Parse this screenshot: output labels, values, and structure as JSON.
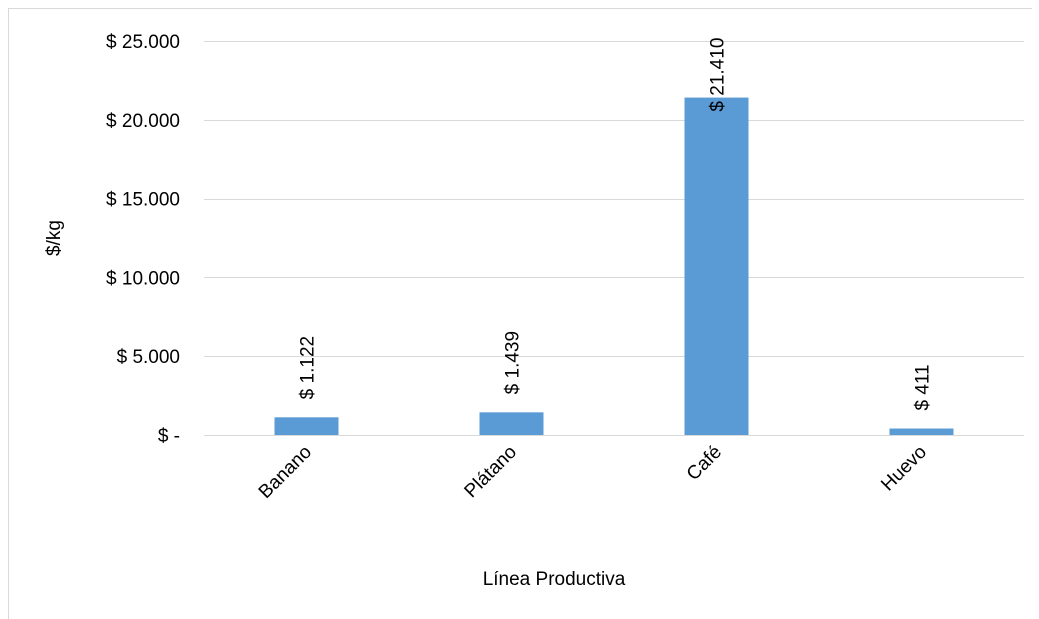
{
  "chart_data": {
    "type": "bar",
    "categories": [
      "Banano",
      "Plátano",
      "Café",
      "Huevo"
    ],
    "values": [
      1122,
      1439,
      21410,
      411
    ],
    "data_labels": [
      "$ 1.122",
      "$ 1.439",
      "$ 21.410",
      "$ 411"
    ],
    "title": "",
    "xlabel": "Línea Productiva",
    "ylabel": "$/kg",
    "ylim": [
      0,
      25000
    ],
    "y_ticks": [
      0,
      5000,
      10000,
      15000,
      20000,
      25000
    ],
    "y_tick_labels": [
      "$ -",
      "$ 5.000",
      "$ 10.000",
      "$ 15.000",
      "$ 20.000",
      "$ 25.000"
    ],
    "grid": true,
    "legend": "none",
    "colors": {
      "bar": "#5b9bd5",
      "grid": "#d9d9d9"
    }
  }
}
